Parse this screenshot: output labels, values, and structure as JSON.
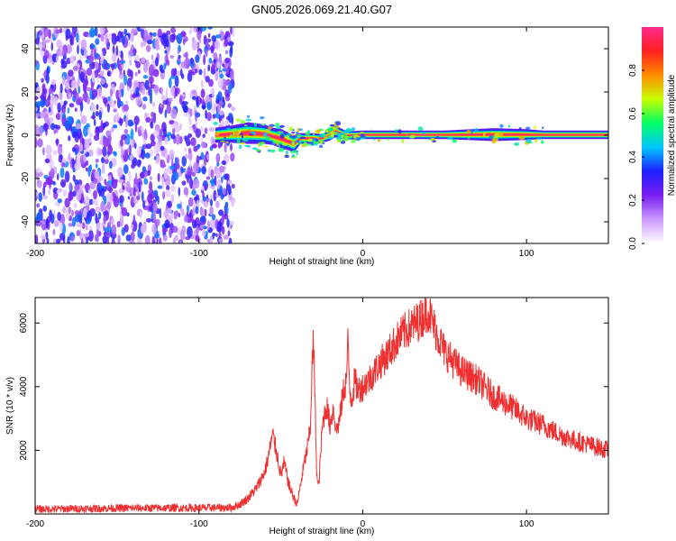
{
  "chart_data": [
    {
      "type": "heatmap",
      "title": "GN05.2026.069.21.40.G07",
      "xlabel": "Height of straight line (km)",
      "ylabel": "Frequency (Hz)",
      "xlim": [
        -200,
        150
      ],
      "ylim": [
        -50,
        50
      ],
      "xticks": [
        -200,
        -100,
        0,
        100
      ],
      "yticks": [
        -40,
        -20,
        0,
        20,
        40
      ],
      "colorbar": {
        "label": "Normalized spectral amplitude",
        "range": [
          0,
          1
        ],
        "ticks": [
          "0.0",
          "0.2",
          "0.4",
          "0.6",
          "0.8"
        ],
        "colors": [
          "#ffffff",
          "#cc99ff",
          "#7a1ef0",
          "#1e1eff",
          "#00c8ff",
          "#00ff66",
          "#c8ff00",
          "#ff8c00",
          "#ff2020",
          "#ff2a8c"
        ]
      },
      "noise_region": {
        "x_range": [
          -200,
          -82
        ],
        "freq_range": [
          -50,
          50
        ]
      },
      "signal_track": {
        "x": [
          -90,
          -80,
          -70,
          -60,
          -55,
          -50,
          -45,
          -42,
          -38,
          -30,
          -25,
          -20,
          -17,
          -14,
          -10,
          -5,
          0,
          20,
          50,
          80,
          100,
          110,
          150
        ],
        "freq": [
          0,
          0.5,
          1,
          0.5,
          -0.5,
          -1.5,
          -3,
          -4,
          -1.5,
          -1.5,
          -1.5,
          0,
          2,
          1,
          0,
          0,
          0.2,
          0.2,
          0.2,
          0.3,
          0.3,
          0.2,
          0.2
        ],
        "bandwidth": [
          3.5,
          4,
          5,
          4.5,
          4,
          4.5,
          4,
          4,
          2.5,
          2.5,
          2,
          2.5,
          3,
          2.5,
          2,
          2,
          2,
          2,
          2,
          3,
          2.5,
          2,
          2
        ]
      }
    },
    {
      "type": "line",
      "xlabel": "Height of straight line (km)",
      "ylabel": "SNR (10 * v/v)",
      "xlim": [
        -200,
        150
      ],
      "ylim": [
        0,
        6800
      ],
      "xticks": [
        -200,
        -100,
        0,
        100
      ],
      "yticks": [
        2000,
        4000,
        6000
      ],
      "series": [
        {
          "name": "SNR",
          "color": "#f03030",
          "x": [
            -200,
            -150,
            -100,
            -80,
            -75,
            -70,
            -65,
            -60,
            -58,
            -55,
            -52,
            -50,
            -48,
            -45,
            -42,
            -40,
            -38,
            -36,
            -34,
            -32,
            -31,
            -30,
            -29,
            -28,
            -27,
            -26,
            -25,
            -24,
            -22,
            -20,
            -18,
            -16,
            -14,
            -12,
            -10,
            -9,
            -8,
            -7,
            -6,
            -5,
            -3,
            0,
            5,
            10,
            15,
            20,
            25,
            30,
            35,
            38,
            40,
            42,
            45,
            50,
            55,
            60,
            70,
            80,
            90,
            100,
            110,
            120,
            130,
            140,
            150
          ],
          "y": [
            150,
            180,
            190,
            200,
            300,
            500,
            800,
            1300,
            1700,
            2500,
            1800,
            1200,
            1600,
            900,
            500,
            300,
            900,
            1500,
            2000,
            2700,
            4500,
            5500,
            3200,
            1200,
            800,
            1600,
            2500,
            3000,
            3400,
            2800,
            3300,
            2600,
            3000,
            3800,
            4200,
            5400,
            4000,
            3600,
            3800,
            4200,
            3900,
            4000,
            4300,
            4700,
            5000,
            5400,
            5700,
            5900,
            6100,
            6300,
            6400,
            6100,
            5700,
            5100,
            4800,
            4500,
            4200,
            3700,
            3400,
            3000,
            2800,
            2500,
            2300,
            2150,
            2000
          ]
        }
      ]
    }
  ]
}
